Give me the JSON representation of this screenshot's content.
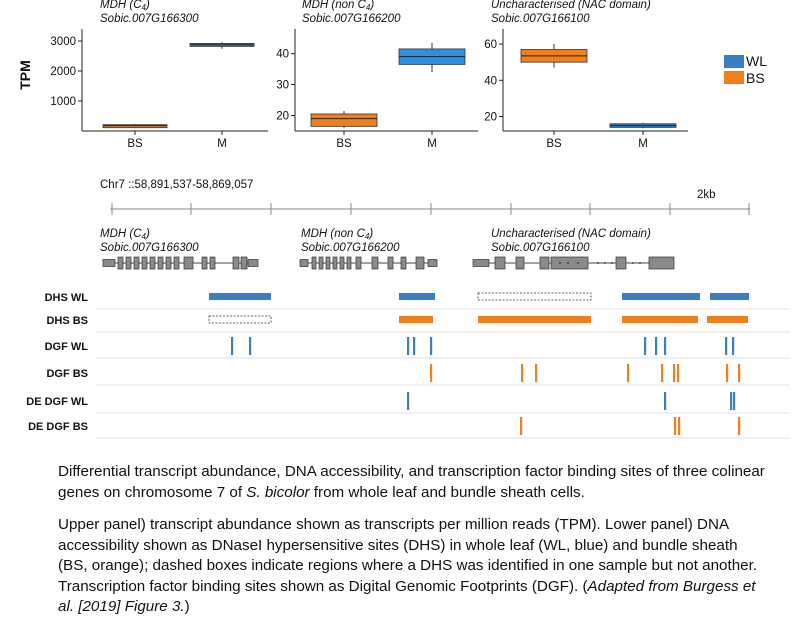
{
  "y_axis_label": "TPM",
  "legend": [
    {
      "label": "WL",
      "color": "#3a7fc1"
    },
    {
      "label": "BS",
      "color": "#f07f1e"
    }
  ],
  "colors": {
    "wl": "#3a7fc1",
    "wl_m": "#2f8fe0",
    "bs": "#f07f1e",
    "bs_mdh": "#c98a3c",
    "gene": "#8a8a8a"
  },
  "chart_data": [
    {
      "type": "box",
      "gene_name": "MDH (C",
      "gene_sub": "4",
      "gene_close": ")",
      "gene_id": "Sobic.007G166300",
      "categories": [
        "BS",
        "M"
      ],
      "ylim": [
        0,
        3200
      ],
      "yticks": [
        1000,
        2000,
        3000
      ],
      "boxes": [
        {
          "cat": "BS",
          "q1": 150,
          "median": 180,
          "q3": 210,
          "min": 130,
          "max": 230,
          "color_key": "bs_mdh"
        },
        {
          "cat": "M",
          "q1": 2820,
          "median": 2870,
          "q3": 2920,
          "min": 2740,
          "max": 2960,
          "color_key": "wl"
        }
      ]
    },
    {
      "type": "box",
      "gene_name": "MDH (non C",
      "gene_sub": "4",
      "gene_close": ")",
      "gene_id": "Sobic.007G166200",
      "categories": [
        "BS",
        "M"
      ],
      "ylim": [
        15,
        46
      ],
      "yticks": [
        20,
        30,
        40
      ],
      "boxes": [
        {
          "cat": "BS",
          "q1": 16.5,
          "median": 19,
          "q3": 20.5,
          "min": 16,
          "max": 21.5,
          "color_key": "bs"
        },
        {
          "cat": "M",
          "q1": 36.5,
          "median": 39,
          "q3": 41.5,
          "min": 34,
          "max": 43.5,
          "color_key": "wl_m"
        }
      ]
    },
    {
      "type": "box",
      "gene_name": "Uncharacterised (NAC domain)",
      "gene_sub": "",
      "gene_close": "",
      "gene_id": "Sobic.007G166100",
      "categories": [
        "BS",
        "M"
      ],
      "ylim": [
        12,
        65
      ],
      "yticks": [
        20,
        40,
        60
      ],
      "boxes": [
        {
          "cat": "BS",
          "q1": 50,
          "median": 53.5,
          "q3": 57,
          "min": 47,
          "max": 60,
          "color_key": "bs"
        },
        {
          "cat": "M",
          "q1": 14,
          "median": 15,
          "q3": 16,
          "min": 13.5,
          "max": 16.5,
          "color_key": "wl"
        }
      ]
    }
  ],
  "locus": "Chr7 ::58,891,537-58,869,057",
  "scale_label": "2kb",
  "track_genes": [
    {
      "name": "MDH (C",
      "sub": "4",
      "close": ")",
      "id": "Sobic.007G166300"
    },
    {
      "name": "MDH (non C",
      "sub": "4",
      "close": ")",
      "id": "Sobic.007G166200"
    },
    {
      "name": "Uncharacterised (NAC domain)",
      "sub": "",
      "close": "",
      "id": "Sobic.007G166100"
    }
  ],
  "tracks": [
    {
      "label": "DHS WL",
      "kind": "dhs",
      "color_key": "wl",
      "segments": [
        [
          209,
          271,
          false
        ],
        [
          399,
          435,
          false
        ],
        [
          478,
          591,
          true
        ],
        [
          622,
          700,
          false
        ],
        [
          710,
          749,
          false
        ]
      ]
    },
    {
      "label": "DHS BS",
      "kind": "dhs",
      "color_key": "bs",
      "segments": [
        [
          209,
          271,
          true
        ],
        [
          399,
          433,
          false
        ],
        [
          478,
          591,
          false
        ],
        [
          622,
          698,
          false
        ],
        [
          707,
          748,
          false
        ]
      ]
    },
    {
      "label": "DGF WL",
      "kind": "dgf",
      "color_key": "wl",
      "marks": [
        232,
        250,
        408,
        414,
        431,
        645,
        656,
        665,
        726,
        733
      ]
    },
    {
      "label": "DGF BS",
      "kind": "dgf",
      "color_key": "bs",
      "marks": [
        431,
        522,
        536,
        628,
        662,
        674,
        678,
        727,
        739
      ]
    },
    {
      "label": "DE DGF WL",
      "kind": "dgf",
      "color_key": "wl",
      "marks": [
        408,
        665,
        731,
        734
      ]
    },
    {
      "label": "DE DGF BS",
      "kind": "dgf",
      "color_key": "bs",
      "marks": [
        521,
        675,
        679,
        739
      ]
    }
  ],
  "caption": {
    "p1_a": "Differential transcript abundance, DNA accessibility, and transcription factor binding sites of three colinear genes on chromosome 7 of ",
    "p1_species": "S. bicolor",
    "p1_b": " from whole leaf and bundle sheath cells.",
    "p2_a": "Upper panel) transcript abundance shown as transcripts per million reads (TPM). Lower panel) DNA accessibility shown as DNaseI hypersensitive sites (DHS) in whole leaf (WL, blue) and bundle sheath (BS, orange); dashed boxes indicate regions where a DHS was identified in one sample but not another. Transcription factor binding sites shown as Digital Genomic Footprints (DGF). (",
    "p2_cite": "Adapted from Burgess et al. [2019] Figure 3.",
    "p2_b": ")"
  }
}
